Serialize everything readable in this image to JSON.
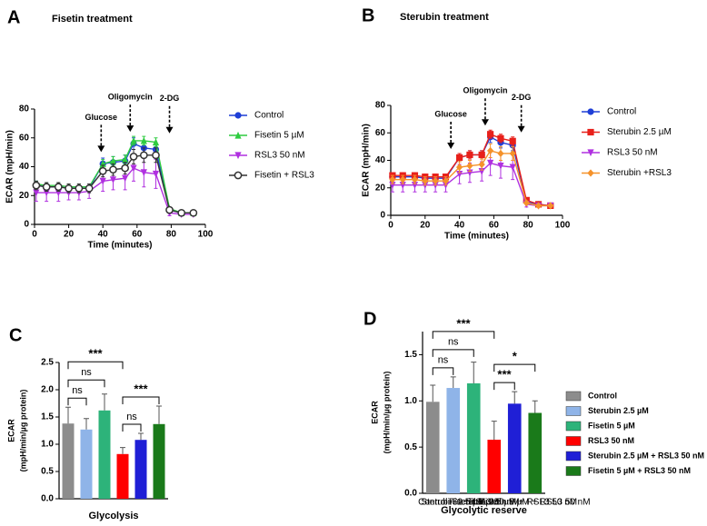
{
  "chart_data": [
    {
      "type": "line",
      "panel": "A",
      "title": "Fisetin treatment",
      "xlabel": "Time (minutes)",
      "ylabel": "ECAR (mpH/min)",
      "x": [
        1,
        7,
        14,
        20,
        26,
        32,
        40,
        46,
        53,
        58,
        64,
        71,
        79,
        86,
        93
      ],
      "xlim": [
        0,
        100
      ],
      "xticks": [
        0,
        20,
        40,
        60,
        80,
        100
      ],
      "ylim": [
        0,
        80
      ],
      "yticks": [
        0,
        20,
        40,
        60,
        80
      ],
      "annotations": [
        {
          "text": "Glucose",
          "x": 39
        },
        {
          "text": "Oligomycin",
          "x": 56
        },
        {
          "text": "2-DG",
          "x": 79
        }
      ],
      "series": [
        {
          "name": "Control",
          "color": "#1f3fd6",
          "marker": "circle",
          "values": [
            27,
            26,
            26,
            25,
            25,
            25,
            42,
            43,
            44,
            56,
            53,
            52,
            10,
            8,
            8
          ],
          "errors": [
            3,
            3,
            3,
            2,
            2,
            2,
            4,
            4,
            4,
            4,
            4,
            4,
            2,
            1,
            1
          ]
        },
        {
          "name": "Fisetin 5 µM",
          "color": "#2ecc40",
          "marker": "triangle",
          "values": [
            28,
            27,
            27,
            26,
            26,
            26,
            42,
            44,
            45,
            58,
            58,
            57,
            11,
            8,
            8
          ],
          "errors": [
            2,
            2,
            2,
            2,
            2,
            2,
            3,
            3,
            3,
            3,
            3,
            3,
            1,
            1,
            1
          ]
        },
        {
          "name": "RSL3 50 nM",
          "color": "#b030e0",
          "marker": "triangle-down",
          "values": [
            22,
            22,
            22,
            22,
            22,
            23,
            30,
            31,
            32,
            39,
            36,
            35,
            8,
            7,
            7
          ],
          "errors": [
            6,
            6,
            6,
            5,
            5,
            5,
            7,
            7,
            8,
            9,
            10,
            10,
            2,
            1,
            1
          ]
        },
        {
          "name": "Fisetin + RSL3",
          "color": "#333333",
          "marker": "circle-open",
          "values": [
            27,
            26,
            26,
            25,
            25,
            25,
            37,
            38,
            39,
            47,
            48,
            48,
            10,
            8,
            8
          ],
          "errors": [
            3,
            3,
            3,
            3,
            3,
            3,
            4,
            4,
            4,
            5,
            5,
            5,
            1,
            1,
            1
          ]
        }
      ]
    },
    {
      "type": "line",
      "panel": "B",
      "title": "Sterubin treatment",
      "xlabel": "Time (minutes)",
      "ylabel": "ECAR (mpH/min)",
      "x": [
        1,
        7,
        14,
        20,
        26,
        32,
        40,
        46,
        53,
        58,
        64,
        71,
        79,
        86,
        93
      ],
      "xlim": [
        0,
        100
      ],
      "xticks": [
        0,
        20,
        40,
        60,
        80,
        100
      ],
      "ylim": [
        0,
        80
      ],
      "yticks": [
        0,
        20,
        40,
        60,
        80
      ],
      "annotations": [
        {
          "text": "Glucose",
          "x": 35
        },
        {
          "text": "Oligomycin",
          "x": 55
        },
        {
          "text": "2-DG",
          "x": 76
        }
      ],
      "series": [
        {
          "name": "Control",
          "color": "#1f3fd6",
          "marker": "circle",
          "values": [
            28,
            28,
            28,
            27,
            27,
            27,
            42,
            44,
            44,
            57,
            53,
            51,
            10,
            8,
            7
          ],
          "errors": [
            2,
            2,
            2,
            2,
            2,
            2,
            3,
            3,
            3,
            4,
            4,
            4,
            1,
            1,
            1
          ]
        },
        {
          "name": "Sterubin 2.5 µM",
          "color": "#e8201a",
          "marker": "square",
          "values": [
            29,
            29,
            29,
            28,
            28,
            28,
            42,
            44,
            44,
            59,
            56,
            54,
            11,
            8,
            7
          ],
          "errors": [
            2,
            2,
            2,
            2,
            2,
            2,
            3,
            3,
            3,
            3,
            3,
            3,
            1,
            1,
            1
          ]
        },
        {
          "name": "RSL3 50 nM",
          "color": "#b030e0",
          "marker": "triangle-down",
          "values": [
            22,
            22,
            22,
            22,
            22,
            22,
            30,
            31,
            32,
            38,
            36,
            35,
            8,
            7,
            7
          ],
          "errors": [
            5,
            5,
            5,
            5,
            5,
            5,
            7,
            7,
            7,
            9,
            9,
            9,
            2,
            1,
            1
          ]
        },
        {
          "name": "Sterubin +RSL3",
          "color": "#f5922a",
          "marker": "diamond",
          "values": [
            26,
            26,
            26,
            25,
            25,
            25,
            35,
            36,
            37,
            47,
            45,
            45,
            9,
            7,
            7
          ],
          "errors": [
            3,
            3,
            3,
            3,
            3,
            3,
            4,
            4,
            4,
            5,
            5,
            5,
            1,
            1,
            1
          ]
        }
      ]
    },
    {
      "type": "bar",
      "panel": "C",
      "xlabel": "Glycolysis",
      "ylabel": [
        "ECAR",
        "(mpH/min/µg protein)"
      ],
      "categories": [
        null,
        null,
        null,
        null,
        null,
        null
      ],
      "colors": [
        "#8c8c8c",
        "#8fb4e8",
        "#2db37a",
        "#ff0000",
        "#1f1fd6",
        "#1a7a1a"
      ],
      "values": [
        1.38,
        1.27,
        1.62,
        0.82,
        1.08,
        1.37
      ],
      "errors": [
        0.3,
        0.2,
        0.3,
        0.12,
        0.12,
        0.33
      ],
      "ylim": [
        0,
        2.5
      ],
      "yticks": [
        {
          "value": 0,
          "label": "0.0"
        },
        0.5,
        {
          "value": 1,
          "label": "1.0"
        },
        1.5,
        {
          "value": 2,
          "label": "2.0"
        },
        2.5
      ],
      "comparisons": [
        {
          "bars": [
            0,
            1
          ],
          "label": "ns"
        },
        {
          "bars": [
            0,
            2
          ],
          "label": "ns"
        },
        {
          "bars": [
            0,
            3
          ],
          "label": "***"
        },
        {
          "bars": [
            3,
            4
          ],
          "label": "ns"
        },
        {
          "bars": [
            3,
            5
          ],
          "label": "***"
        }
      ]
    },
    {
      "type": "bar",
      "panel": "D",
      "xlabel": "Glycolytic reserve",
      "ylabel": [
        "ECAR",
        "(mpH/min/µg protein)"
      ],
      "categories": [
        "Control",
        "Sterubin 2.5 µM",
        "Fisetin 5 µM",
        "RSL3 50 nM",
        "Sterubin 2.5 µM + RSL3 50 nM",
        "Fisetin 5 µM + RSL3 50 nM"
      ],
      "colors": [
        "#8c8c8c",
        "#8fb4e8",
        "#2db37a",
        "#ff0000",
        "#1f1fd6",
        "#1a7a1a"
      ],
      "values": [
        0.99,
        1.14,
        1.19,
        0.58,
        0.97,
        0.87
      ],
      "errors": [
        0.18,
        0.12,
        0.23,
        0.2,
        0.13,
        0.13
      ],
      "ylim": [
        0,
        1.75
      ],
      "yticks": [
        {
          "value": 0,
          "label": "0.0"
        },
        0.5,
        {
          "value": 1,
          "label": "1.0"
        },
        1.5
      ],
      "legend": true,
      "comparisons": [
        {
          "bars": [
            0,
            1
          ],
          "label": "ns"
        },
        {
          "bars": [
            0,
            2
          ],
          "label": "ns"
        },
        {
          "bars": [
            0,
            3
          ],
          "label": "***"
        },
        {
          "bars": [
            3,
            4
          ],
          "label": "***"
        },
        {
          "bars": [
            3,
            5
          ],
          "label": "*"
        }
      ]
    }
  ]
}
